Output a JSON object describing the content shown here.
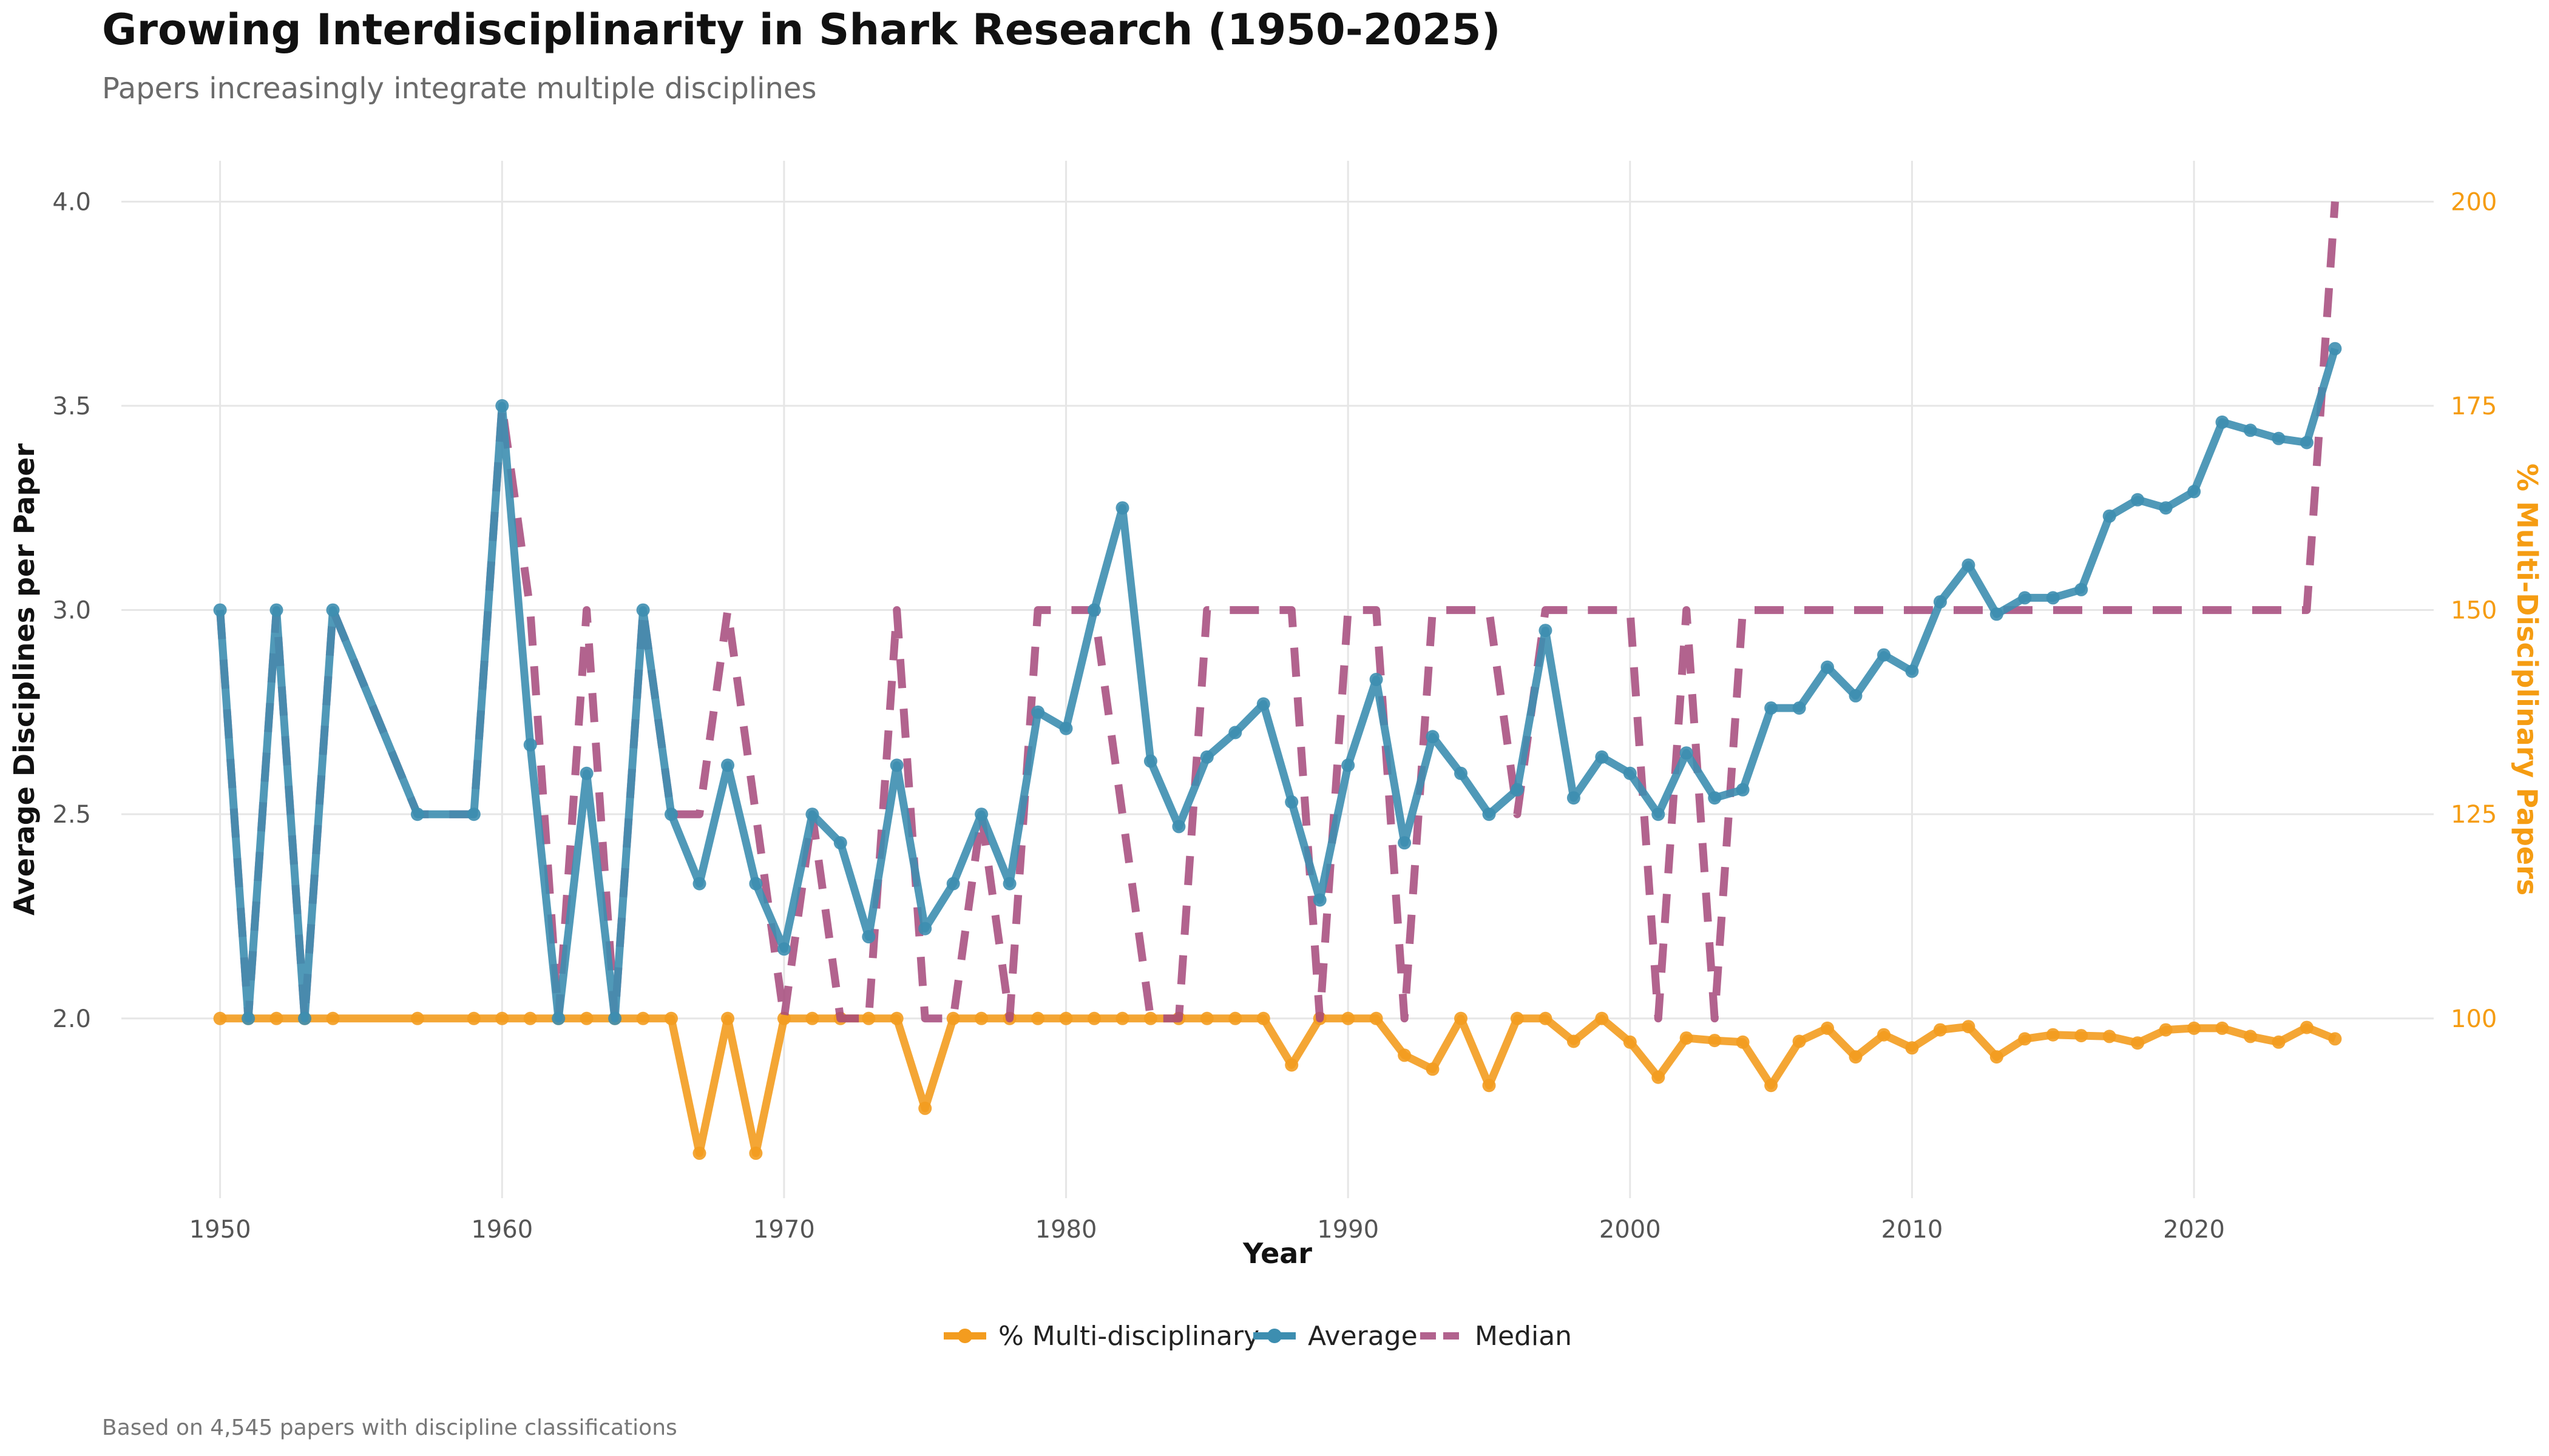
{
  "title": "Growing Interdisciplinarity in Shark Research (1950-2025)",
  "subtitle": "Papers increasingly integrate multiple disciplines",
  "caption": "Based on 4,545 papers with discipline classifications",
  "colors": {
    "multi": "#f39c1f",
    "average": "#3d8eb0",
    "median": "#a5487a",
    "grid": "#e6e6e6"
  },
  "chart_data": {
    "type": "line",
    "xlabel": "Year",
    "ylabel": "Average Disciplines per Paper",
    "ylabel_right": "% Multi-Disciplinary Papers",
    "xlim": [
      1946.5,
      2028.5
    ],
    "ylim": [
      1.56,
      4.1
    ],
    "ylim_right": [
      78,
      205
    ],
    "x_ticks": [
      1950,
      1960,
      1970,
      1980,
      1990,
      2000,
      2010,
      2020
    ],
    "y_ticks": [
      2.0,
      2.5,
      3.0,
      3.5,
      4.0
    ],
    "y_ticks_right": [
      100,
      125,
      150,
      175,
      200
    ],
    "grid": true,
    "legend_position": "bottom",
    "series": [
      {
        "name": "% Multi-disciplinary",
        "axis": "right",
        "style": "solid-points",
        "points": [
          [
            1950,
            100
          ],
          [
            1951,
            100
          ],
          [
            1952,
            100
          ],
          [
            1953,
            100
          ],
          [
            1954,
            100
          ],
          [
            1957,
            100
          ],
          [
            1959,
            100
          ],
          [
            1960,
            100
          ],
          [
            1961,
            100
          ],
          [
            1962,
            100
          ],
          [
            1963,
            100
          ],
          [
            1964,
            100
          ],
          [
            1965,
            100
          ],
          [
            1966,
            100
          ],
          [
            1967,
            83.5
          ],
          [
            1968,
            100
          ],
          [
            1969,
            83.5
          ],
          [
            1970,
            100
          ],
          [
            1971,
            100
          ],
          [
            1972,
            100
          ],
          [
            1973,
            100
          ],
          [
            1974,
            100
          ],
          [
            1975,
            89
          ],
          [
            1976,
            100
          ],
          [
            1977,
            100
          ],
          [
            1978,
            100
          ],
          [
            1979,
            100
          ],
          [
            1980,
            100
          ],
          [
            1981,
            100
          ],
          [
            1982,
            100
          ],
          [
            1983,
            100
          ],
          [
            1984,
            100
          ],
          [
            1985,
            100
          ],
          [
            1986,
            100
          ],
          [
            1987,
            100
          ],
          [
            1988,
            94.3
          ],
          [
            1989,
            100
          ],
          [
            1990,
            100
          ],
          [
            1991,
            100
          ],
          [
            1992,
            95.5
          ],
          [
            1993,
            93.8
          ],
          [
            1994,
            100
          ],
          [
            1995,
            91.8
          ],
          [
            1996,
            100
          ],
          [
            1997,
            100
          ],
          [
            1998,
            97.2
          ],
          [
            1999,
            100
          ],
          [
            2000,
            97.1
          ],
          [
            2001,
            92.8
          ],
          [
            2002,
            97.6
          ],
          [
            2003,
            97.3
          ],
          [
            2004,
            97.1
          ],
          [
            2005,
            91.8
          ],
          [
            2006,
            97.2
          ],
          [
            2007,
            98.8
          ],
          [
            2008,
            95.3
          ],
          [
            2009,
            98
          ],
          [
            2010,
            96.4
          ],
          [
            2011,
            98.6
          ],
          [
            2012,
            99
          ],
          [
            2013,
            95.3
          ],
          [
            2014,
            97.5
          ],
          [
            2015,
            98
          ],
          [
            2016,
            97.9
          ],
          [
            2017,
            97.8
          ],
          [
            2018,
            97
          ],
          [
            2019,
            98.6
          ],
          [
            2020,
            98.8
          ],
          [
            2021,
            98.8
          ],
          [
            2022,
            97.8
          ],
          [
            2023,
            97.1
          ],
          [
            2024,
            98.9
          ],
          [
            2025,
            97.5
          ]
        ]
      },
      {
        "name": "Average",
        "axis": "left",
        "style": "solid-points",
        "points": [
          [
            1950,
            3.0
          ],
          [
            1951,
            2.0
          ],
          [
            1952,
            3.0
          ],
          [
            1953,
            2.0
          ],
          [
            1954,
            3.0
          ],
          [
            1957,
            2.5
          ],
          [
            1959,
            2.5
          ],
          [
            1960,
            3.5
          ],
          [
            1961,
            2.67
          ],
          [
            1962,
            2.0
          ],
          [
            1963,
            2.6
          ],
          [
            1964,
            2.0
          ],
          [
            1965,
            3.0
          ],
          [
            1966,
            2.5
          ],
          [
            1967,
            2.33
          ],
          [
            1968,
            2.62
          ],
          [
            1969,
            2.33
          ],
          [
            1970,
            2.17
          ],
          [
            1971,
            2.5
          ],
          [
            1972,
            2.43
          ],
          [
            1973,
            2.2
          ],
          [
            1974,
            2.62
          ],
          [
            1975,
            2.22
          ],
          [
            1976,
            2.33
          ],
          [
            1977,
            2.5
          ],
          [
            1978,
            2.33
          ],
          [
            1979,
            2.75
          ],
          [
            1980,
            2.71
          ],
          [
            1981,
            3.0
          ],
          [
            1982,
            3.25
          ],
          [
            1983,
            2.63
          ],
          [
            1984,
            2.47
          ],
          [
            1985,
            2.64
          ],
          [
            1986,
            2.7
          ],
          [
            1987,
            2.77
          ],
          [
            1988,
            2.53
          ],
          [
            1989,
            2.29
          ],
          [
            1990,
            2.62
          ],
          [
            1991,
            2.83
          ],
          [
            1992,
            2.43
          ],
          [
            1993,
            2.69
          ],
          [
            1994,
            2.6
          ],
          [
            1995,
            2.5
          ],
          [
            1996,
            2.56
          ],
          [
            1997,
            2.95
          ],
          [
            1998,
            2.54
          ],
          [
            1999,
            2.64
          ],
          [
            2000,
            2.6
          ],
          [
            2001,
            2.5
          ],
          [
            2002,
            2.65
          ],
          [
            2003,
            2.54
          ],
          [
            2004,
            2.56
          ],
          [
            2005,
            2.76
          ],
          [
            2006,
            2.76
          ],
          [
            2007,
            2.86
          ],
          [
            2008,
            2.79
          ],
          [
            2009,
            2.89
          ],
          [
            2010,
            2.85
          ],
          [
            2011,
            3.02
          ],
          [
            2012,
            3.11
          ],
          [
            2013,
            2.99
          ],
          [
            2014,
            3.03
          ],
          [
            2015,
            3.03
          ],
          [
            2016,
            3.05
          ],
          [
            2017,
            3.23
          ],
          [
            2018,
            3.27
          ],
          [
            2019,
            3.25
          ],
          [
            2020,
            3.29
          ],
          [
            2021,
            3.46
          ],
          [
            2022,
            3.44
          ],
          [
            2023,
            3.42
          ],
          [
            2024,
            3.41
          ],
          [
            2025,
            3.64
          ]
        ]
      },
      {
        "name": "Median",
        "axis": "left",
        "style": "dashed",
        "points": [
          [
            1950,
            3.0
          ],
          [
            1951,
            2.0
          ],
          [
            1952,
            3.0
          ],
          [
            1953,
            2.0
          ],
          [
            1954,
            3.0
          ],
          [
            1957,
            2.5
          ],
          [
            1959,
            2.5
          ],
          [
            1960,
            3.5
          ],
          [
            1961,
            3.0
          ],
          [
            1962,
            2.0
          ],
          [
            1963,
            3.0
          ],
          [
            1964,
            2.0
          ],
          [
            1965,
            3.0
          ],
          [
            1966,
            2.5
          ],
          [
            1967,
            2.5
          ],
          [
            1968,
            3.0
          ],
          [
            1969,
            2.5
          ],
          [
            1970,
            2.0
          ],
          [
            1971,
            2.5
          ],
          [
            1972,
            2.0
          ],
          [
            1973,
            2.0
          ],
          [
            1974,
            3.0
          ],
          [
            1975,
            2.0
          ],
          [
            1976,
            2.0
          ],
          [
            1977,
            2.5
          ],
          [
            1978,
            2.0
          ],
          [
            1979,
            3.0
          ],
          [
            1980,
            3.0
          ],
          [
            1981,
            3.0
          ],
          [
            1982,
            2.5
          ],
          [
            1983,
            2.0
          ],
          [
            1984,
            2.0
          ],
          [
            1985,
            3.0
          ],
          [
            1986,
            3.0
          ],
          [
            1987,
            3.0
          ],
          [
            1988,
            3.0
          ],
          [
            1989,
            2.0
          ],
          [
            1990,
            3.0
          ],
          [
            1991,
            3.0
          ],
          [
            1992,
            2.0
          ],
          [
            1993,
            3.0
          ],
          [
            1994,
            3.0
          ],
          [
            1995,
            3.0
          ],
          [
            1996,
            2.5
          ],
          [
            1997,
            3.0
          ],
          [
            1998,
            3.0
          ],
          [
            1999,
            3.0
          ],
          [
            2000,
            3.0
          ],
          [
            2001,
            2.0
          ],
          [
            2002,
            3.0
          ],
          [
            2003,
            2.0
          ],
          [
            2004,
            3.0
          ],
          [
            2005,
            3.0
          ],
          [
            2006,
            3.0
          ],
          [
            2007,
            3.0
          ],
          [
            2008,
            3.0
          ],
          [
            2009,
            3.0
          ],
          [
            2010,
            3.0
          ],
          [
            2011,
            3.0
          ],
          [
            2012,
            3.0
          ],
          [
            2013,
            3.0
          ],
          [
            2014,
            3.0
          ],
          [
            2015,
            3.0
          ],
          [
            2016,
            3.0
          ],
          [
            2017,
            3.0
          ],
          [
            2018,
            3.0
          ],
          [
            2019,
            3.0
          ],
          [
            2020,
            3.0
          ],
          [
            2021,
            3.0
          ],
          [
            2022,
            3.0
          ],
          [
            2023,
            3.0
          ],
          [
            2024,
            3.0
          ],
          [
            2025,
            4.0
          ]
        ]
      }
    ]
  }
}
